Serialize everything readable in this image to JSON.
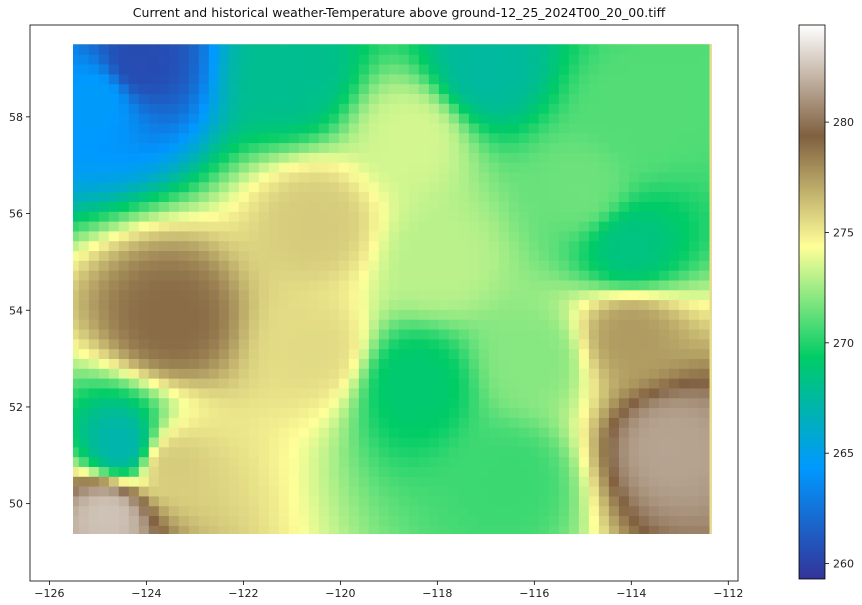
{
  "chart_data": {
    "type": "heatmap",
    "title": "Current and historical weather-Temperature above ground-12_25_2024T00_20_00.tiff",
    "xlabel": "",
    "ylabel": "",
    "xlim": [
      -126.4,
      -111.8
    ],
    "ylim": [
      48.4,
      59.9
    ],
    "data_extent": {
      "x": [
        -125.6,
        -112.4
      ],
      "y": [
        49.35,
        59.5
      ]
    },
    "x_ticks": [
      -126,
      -124,
      -122,
      -120,
      -118,
      -116,
      -114,
      -112
    ],
    "x_tick_labels": [
      "−126",
      "−124",
      "−122",
      "−120",
      "−118",
      "−116",
      "−114",
      "−112"
    ],
    "y_ticks": [
      50,
      52,
      54,
      56,
      58
    ],
    "y_tick_labels": [
      "50",
      "52",
      "54",
      "56",
      "58"
    ],
    "grid": false,
    "colormap": "terrain",
    "colorbar": {
      "range": [
        259.3,
        284.4
      ],
      "ticks": [
        260,
        265,
        270,
        275,
        280
      ],
      "tick_labels": [
        "260",
        "265",
        "270",
        "275",
        "280"
      ],
      "colors": [
        "#333399",
        "#0099ff",
        "#00cc66",
        "#ffff99",
        "#806040",
        "#ffffff"
      ]
    },
    "regions": [
      {
        "x": -124.2,
        "y": 59.1,
        "value": 260.5
      },
      {
        "x": -125.0,
        "y": 58.4,
        "value": 264.5
      },
      {
        "x": -121.0,
        "y": 58.9,
        "value": 268.0
      },
      {
        "x": -117.0,
        "y": 59.0,
        "value": 267.5
      },
      {
        "x": -114.0,
        "y": 58.0,
        "value": 271.0
      },
      {
        "x": -118.5,
        "y": 57.6,
        "value": 273.5
      },
      {
        "x": -115.0,
        "y": 56.5,
        "value": 271.5
      },
      {
        "x": -114.0,
        "y": 55.3,
        "value": 268.5
      },
      {
        "x": -120.5,
        "y": 55.8,
        "value": 276.0
      },
      {
        "x": -118.0,
        "y": 55.0,
        "value": 273.0
      },
      {
        "x": -123.5,
        "y": 53.8,
        "value": 279.0
      },
      {
        "x": -120.5,
        "y": 53.2,
        "value": 275.5
      },
      {
        "x": -118.5,
        "y": 52.5,
        "value": 269.0
      },
      {
        "x": -116.0,
        "y": 53.0,
        "value": 272.0
      },
      {
        "x": -114.0,
        "y": 53.5,
        "value": 277.5
      },
      {
        "x": -113.2,
        "y": 51.2,
        "value": 281.5
      },
      {
        "x": -116.5,
        "y": 50.5,
        "value": 270.5
      },
      {
        "x": -124.5,
        "y": 51.2,
        "value": 267.0
      },
      {
        "x": -123.5,
        "y": 50.8,
        "value": 276.0
      },
      {
        "x": -124.8,
        "y": 49.8,
        "value": 282.5
      }
    ]
  }
}
